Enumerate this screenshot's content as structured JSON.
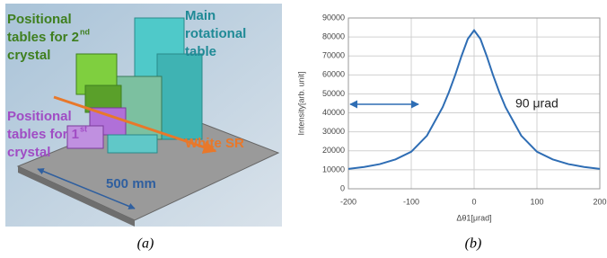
{
  "figure_a": {
    "labels": [
      {
        "lines": [
          "Positional",
          "tables for 2",
          "crystal"
        ],
        "sup": "nd",
        "color": "#3f7f1f"
      },
      {
        "lines": [
          "Main",
          "rotational",
          "table"
        ],
        "color": "#1f8a96"
      },
      {
        "lines": [
          "Positional",
          "tables for 1",
          "crystal"
        ],
        "sup": "st",
        "color": "#a04cc4"
      },
      {
        "lines": [
          "White SR"
        ],
        "color": "#e8782a"
      },
      {
        "lines": [
          "500 mm"
        ],
        "color": "#2f5f9f"
      }
    ],
    "caption": "(a)"
  },
  "figure_b": {
    "caption": "(b)"
  },
  "chart_data": {
    "type": "line",
    "x_label": "Δθ1[μrad]",
    "y_label": "Intensity[arb. unit]",
    "annotation": "90 μrad",
    "xlim": [
      -200,
      200
    ],
    "xticks": [
      -200,
      -100,
      0,
      100,
      200
    ],
    "ylim": [
      0,
      90000
    ],
    "yticks": [
      0,
      10000,
      20000,
      30000,
      40000,
      50000,
      60000,
      70000,
      80000,
      90000
    ],
    "grid": true,
    "series": [
      {
        "color": "#2e6db4",
        "x": [
          -200,
          -175,
          -150,
          -125,
          -100,
          -75,
          -50,
          -40,
          -30,
          -20,
          -10,
          0,
          10,
          20,
          30,
          40,
          50,
          75,
          100,
          125,
          150,
          175,
          200
        ],
        "values": [
          10500,
          11500,
          13000,
          15500,
          19500,
          28000,
          43000,
          51000,
          60000,
          70000,
          79000,
          83500,
          79000,
          70000,
          60000,
          51000,
          43000,
          28000,
          19500,
          15500,
          13000,
          11500,
          10500
        ]
      }
    ]
  }
}
